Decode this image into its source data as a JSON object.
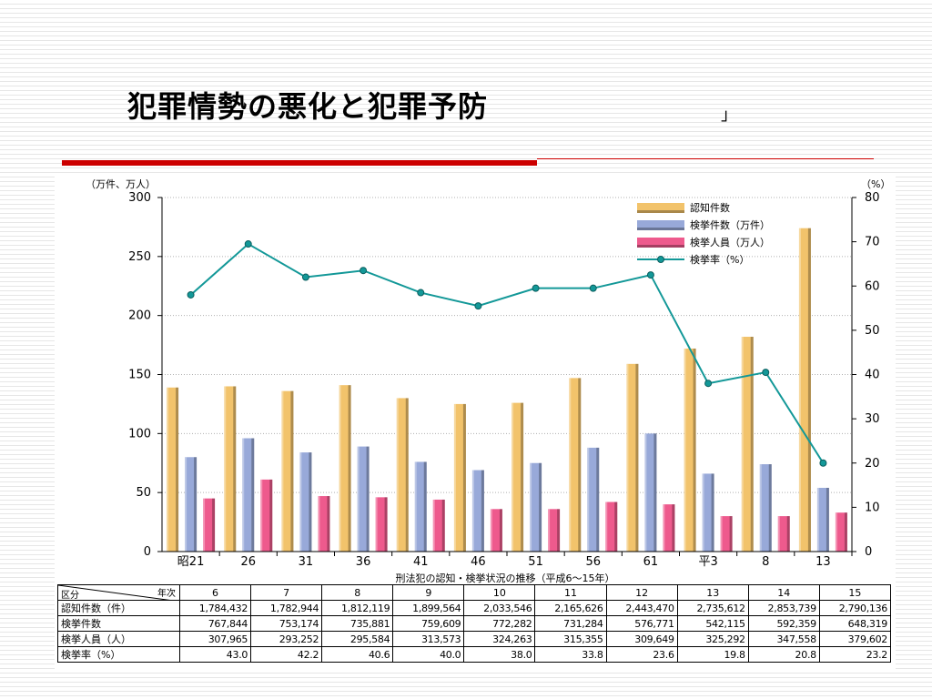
{
  "slide": {
    "title": "犯罪情勢の悪化と犯罪予防",
    "bracket": "」"
  },
  "colors": {
    "accent_rule": "#cc0000",
    "bar_recognized": "#f2c36b",
    "bar_cleared": "#98a9d9",
    "bar_arrested": "#ee5a8d",
    "line_rate": "#139898"
  },
  "chart_data": {
    "type": "bar",
    "title": "",
    "xlabel": "刑法犯の認知・検挙状況の推移（平成6～15年）",
    "ylabel_left": "（万件、万人）",
    "ylabel_right": "（%）",
    "ylim_left": [
      0,
      300
    ],
    "ylim_right": [
      0,
      80
    ],
    "left_ticks": [
      "0",
      "50",
      "100",
      "150",
      "200",
      "250",
      "300"
    ],
    "right_ticks": [
      "0",
      "10",
      "20",
      "30",
      "40",
      "50",
      "60",
      "70",
      "80"
    ],
    "categories": [
      "昭21",
      "26",
      "31",
      "36",
      "41",
      "46",
      "51",
      "56",
      "61",
      "平3",
      "8",
      "13"
    ],
    "legend_position": "top-right",
    "series": [
      {
        "name": "認知件数",
        "type": "bar",
        "axis": "left",
        "color": "#f2c36b",
        "values": [
          139,
          140,
          136,
          141,
          130,
          125,
          126,
          147,
          159,
          172,
          182,
          274
        ]
      },
      {
        "name": "検挙件数（万件）",
        "type": "bar",
        "axis": "left",
        "color": "#98a9d9",
        "values": [
          80,
          96,
          84,
          89,
          76,
          69,
          75,
          88,
          100,
          66,
          74,
          54
        ]
      },
      {
        "name": "検挙人員（万人）",
        "type": "bar",
        "axis": "left",
        "color": "#ee5a8d",
        "values": [
          45,
          61,
          47,
          46,
          44,
          36,
          36,
          42,
          40,
          30,
          30,
          33
        ]
      },
      {
        "name": "検挙率（%）",
        "type": "line",
        "axis": "right",
        "color": "#139898",
        "values": [
          58,
          69.5,
          62,
          63.5,
          58.5,
          55.5,
          59.5,
          59.5,
          62.5,
          38,
          40.5,
          20
        ]
      }
    ]
  },
  "table": {
    "corner_top": "年次",
    "corner_bottom": "区分",
    "years": [
      "6",
      "7",
      "8",
      "9",
      "10",
      "11",
      "12",
      "13",
      "14",
      "15"
    ],
    "rows": [
      {
        "label": "認知件数（件）",
        "values": [
          "1,784,432",
          "1,782,944",
          "1,812,119",
          "1,899,564",
          "2,033,546",
          "2,165,626",
          "2,443,470",
          "2,735,612",
          "2,853,739",
          "2,790,136"
        ]
      },
      {
        "label": "検挙件数",
        "values": [
          "767,844",
          "753,174",
          "735,881",
          "759,609",
          "772,282",
          "731,284",
          "576,771",
          "542,115",
          "592,359",
          "648,319"
        ]
      },
      {
        "label": "検挙人員（人）",
        "values": [
          "307,965",
          "293,252",
          "295,584",
          "313,573",
          "324,263",
          "315,355",
          "309,649",
          "325,292",
          "347,558",
          "379,602"
        ]
      },
      {
        "label": "検挙率（%）",
        "values": [
          "43.0",
          "42.2",
          "40.6",
          "40.0",
          "38.0",
          "33.8",
          "23.6",
          "19.8",
          "20.8",
          "23.2"
        ]
      }
    ]
  }
}
